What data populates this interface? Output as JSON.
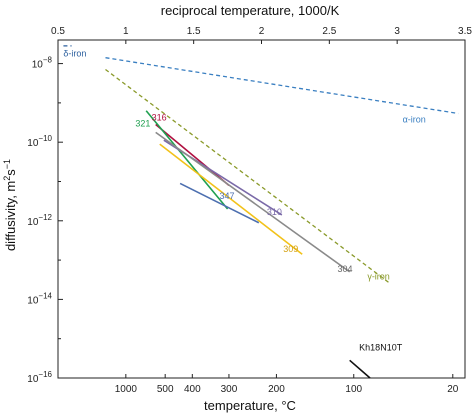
{
  "chart_data": {
    "type": "line",
    "title": "",
    "xlabel_top": "reciprocal temperature, 1000/K",
    "xlabel_bottom": "temperature, °C",
    "ylabel_main": "diffusivity, m",
    "ylabel_exp": "2",
    "ylabel_mid": "s",
    "ylabel_exp2": "−1",
    "xlim": [
      0.5,
      3.5
    ],
    "ylim_log10": [
      -16,
      -7.4
    ],
    "y_scale": "log",
    "top_ticks": [
      {
        "value": 0.5,
        "label": "0.5"
      },
      {
        "value": 1,
        "label": "1"
      },
      {
        "value": 1.5,
        "label": "1.5"
      },
      {
        "value": 2,
        "label": "2"
      },
      {
        "value": 2.5,
        "label": "2.5"
      },
      {
        "value": 3,
        "label": "3"
      },
      {
        "value": 3.5,
        "label": "3.5"
      }
    ],
    "bottom_ticks": [
      {
        "value": 1.0,
        "label": "1000"
      },
      {
        "value": 1.29,
        "label": "500"
      },
      {
        "value": 1.49,
        "label": "400"
      },
      {
        "value": 1.76,
        "label": "300"
      },
      {
        "value": 2.11,
        "label": "200"
      },
      {
        "value": 2.68,
        "label": "100"
      },
      {
        "value": 3.41,
        "label": "20"
      }
    ],
    "y_ticks": [
      {
        "exp": -8,
        "base": "10",
        "sup": "−8"
      },
      {
        "exp": -10,
        "base": "10",
        "sup": "−10"
      },
      {
        "exp": -12,
        "base": "10",
        "sup": "−12"
      },
      {
        "exp": -14,
        "base": "10",
        "sup": "−14"
      },
      {
        "exp": -16,
        "base": "10",
        "sup": "−16"
      }
    ],
    "series": [
      {
        "name": "α-iron",
        "color": "#3a7fc1",
        "dash": true,
        "x": [
          0.85,
          3.45
        ],
        "y_log10": [
          -7.85,
          -9.27
        ]
      },
      {
        "name": "γ-iron",
        "color": "#8a9a2a",
        "dash": true,
        "x": [
          0.85,
          2.95
        ],
        "y_log10": [
          -8.15,
          -13.6
        ]
      },
      {
        "name": "δ-iron",
        "color": "#2b5f9e",
        "dash": true,
        "x": [
          0.54,
          0.6
        ],
        "y_log10": [
          -7.55,
          -7.55
        ]
      },
      {
        "name": "316",
        "color": "#b01040",
        "dash": false,
        "x": [
          1.22,
          1.76
        ],
        "y_log10": [
          -9.55,
          -11.1
        ]
      },
      {
        "name": "321",
        "color": "#20a050",
        "dash": false,
        "x": [
          1.15,
          1.75
        ],
        "y_log10": [
          -9.2,
          -11.7
        ]
      },
      {
        "name": "347",
        "color": "#4d6fb0",
        "dash": false,
        "x": [
          1.4,
          1.98
        ],
        "y_log10": [
          -11.05,
          -12.05
        ]
      },
      {
        "name": "310",
        "color": "#7a6aa8",
        "dash": false,
        "x": [
          1.28,
          2.15
        ],
        "y_log10": [
          -9.95,
          -11.85
        ]
      },
      {
        "name": "309",
        "color": "#f2c21a",
        "dash": false,
        "x": [
          1.25,
          2.3
        ],
        "y_log10": [
          -10.05,
          -12.85
        ]
      },
      {
        "name": "304",
        "color": "#8a8a8a",
        "dash": false,
        "x": [
          1.22,
          2.65
        ],
        "y_log10": [
          -9.75,
          -13.3
        ]
      },
      {
        "name": "Kh18N10T",
        "color": "#111111",
        "dash": false,
        "x": [
          2.65,
          2.8
        ],
        "y_log10": [
          -15.55,
          -16.0
        ]
      }
    ],
    "annotations": [
      {
        "text": "δ-iron",
        "color": "#2b5f9e",
        "x": 0.54,
        "y_log10": -7.82
      },
      {
        "text": "α-iron",
        "color": "#3a7fc1",
        "x": 3.04,
        "y_log10": -9.5
      },
      {
        "text": "γ-iron",
        "color": "#8a9a2a",
        "x": 2.78,
        "y_log10": -13.5
      },
      {
        "text": "321",
        "color": "#20a050",
        "x": 1.07,
        "y_log10": -9.6
      },
      {
        "text": "316",
        "color": "#b01040",
        "x": 1.19,
        "y_log10": -9.45
      },
      {
        "text": "347",
        "color": "#4d6fb0",
        "x": 1.69,
        "y_log10": -11.45
      },
      {
        "text": "310",
        "color": "#7a6aa8",
        "x": 2.04,
        "y_log10": -11.85
      },
      {
        "text": "309",
        "color": "#d4a10f",
        "x": 2.16,
        "y_log10": -12.8
      },
      {
        "text": "304",
        "color": "#666666",
        "x": 2.56,
        "y_log10": -13.3
      },
      {
        "text": "Kh18N10T",
        "color": "#111111",
        "x": 2.72,
        "y_log10": -15.3
      }
    ]
  }
}
